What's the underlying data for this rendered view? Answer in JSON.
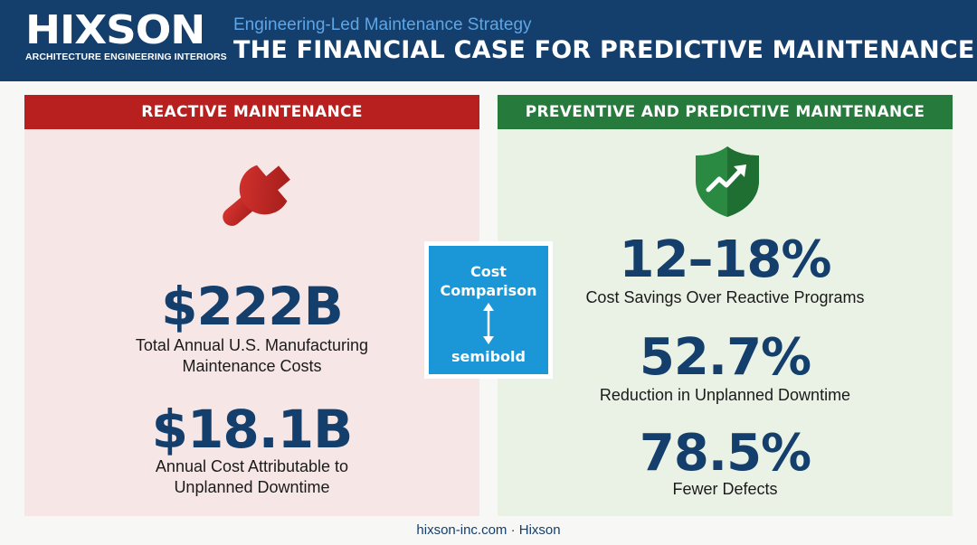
{
  "header": {
    "logo_word": "HIXSON",
    "logo_tagline": "ARCHITECTURE ENGINEERING INTERIORS",
    "subtitle": "Engineering-Led Maintenance Strategy",
    "title": "THE FINANCIAL CASE FOR PREDICTIVE MAINTENANCE",
    "background_color": "#143e6b"
  },
  "reactive": {
    "heading": "REACTIVE MAINTENANCE",
    "icon": "wrench-icon",
    "accent_color": "#b8201f",
    "stats": [
      {
        "value": "$222B",
        "label_line1": "Total Annual U.S. Manufacturing",
        "label_line2": "Maintenance Costs"
      },
      {
        "value": "$18.1B",
        "label_line1": "Annual Cost Attributable to",
        "label_line2": "Unplanned Downtime"
      }
    ]
  },
  "predictive": {
    "heading": "PREVENTIVE AND PREDICTIVE MAINTENANCE",
    "icon": "shield-trend-icon",
    "accent_color": "#267a3c",
    "stats": [
      {
        "value": "12–18%",
        "label": "Cost Savings Over Reactive Programs"
      },
      {
        "value": "52.7%",
        "label": "Reduction in Unplanned Downtime"
      },
      {
        "value": "78.5%",
        "label": "Fewer Defects"
      }
    ]
  },
  "comparison_box": {
    "title_line1": "Cost",
    "title_line2": "Comparison",
    "icon": "double-arrow-icon",
    "note": "semibold",
    "color": "#1b96d6"
  },
  "footer": {
    "text": "hixson-inc.com · Hixson"
  }
}
